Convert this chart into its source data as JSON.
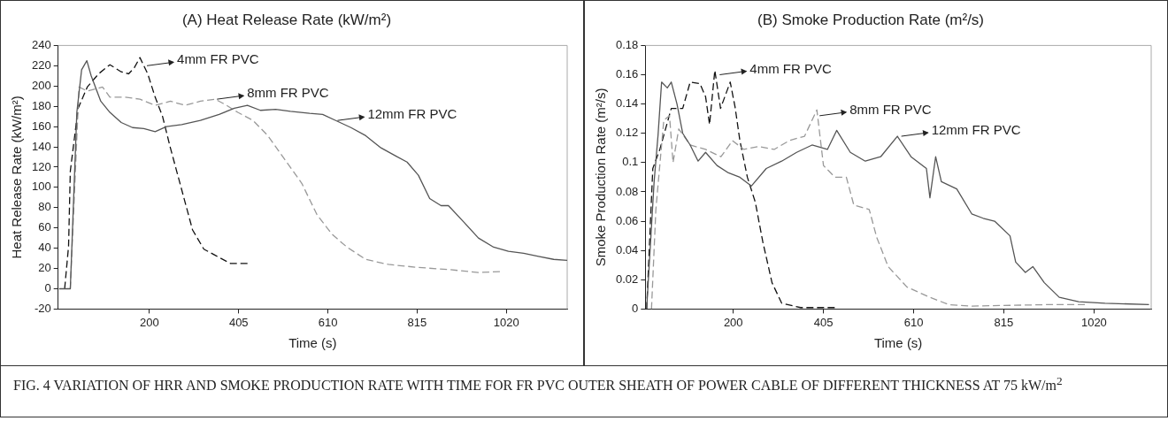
{
  "chart_data": [
    {
      "type": "line",
      "title": "(A) Heat Release Rate (kW/m²)",
      "xlabel": "Time (s)",
      "ylabel": "Heat Release Rate (kW/m²)",
      "xlim": [
        -10,
        1160
      ],
      "xticks": [
        200,
        405,
        610,
        815,
        1020
      ],
      "ylim": [
        -20,
        240
      ],
      "yticks": [
        -20,
        0,
        20,
        40,
        60,
        80,
        100,
        120,
        140,
        160,
        180,
        200,
        220,
        240
      ],
      "series": [
        {
          "color": "#555555",
          "line_style": "solid",
          "x": [
            -8,
            18,
            33,
            44,
            56,
            66,
            88,
            109,
            135,
            161,
            187,
            213,
            239,
            274,
            317,
            360,
            395,
            425,
            455,
            490,
            524,
            568,
            598,
            628,
            663,
            697,
            732,
            766,
            792,
            818,
            844,
            870,
            887,
            922,
            956,
            991,
            1025,
            1060,
            1094,
            1129,
            1160
          ],
          "values": [
            0,
            0,
            174,
            216,
            225,
            210,
            185,
            174,
            164,
            159,
            158,
            155,
            160,
            162,
            166,
            172,
            178,
            181,
            176,
            177,
            175,
            173,
            172,
            166,
            159,
            151,
            139,
            131,
            125,
            112,
            89,
            82,
            82,
            66,
            50,
            41,
            37,
            35,
            32,
            29,
            28
          ]
        },
        {
          "color": "#999999",
          "line_style": "dashed",
          "x": [
            18,
            38,
            57,
            92,
            109,
            144,
            178,
            213,
            248,
            282,
            317,
            351,
            377,
            403,
            438,
            472,
            515,
            550,
            585,
            619,
            654,
            697,
            749,
            818,
            887,
            956,
            1008
          ],
          "values": [
            0,
            199,
            195,
            199,
            189,
            189,
            187,
            181,
            185,
            181,
            185,
            187,
            181,
            174,
            166,
            151,
            125,
            104,
            73,
            54,
            41,
            29,
            24,
            21,
            19,
            16,
            17
          ]
        },
        {
          "color": "#111111",
          "line_style": "dashed",
          "x": [
            5,
            14,
            18,
            36,
            57,
            83,
            109,
            135,
            152,
            165,
            178,
            196,
            213,
            230,
            248,
            265,
            282,
            299,
            325,
            351,
            386,
            429
          ],
          "values": [
            0,
            42,
            116,
            178,
            199,
            212,
            221,
            214,
            212,
            218,
            228,
            212,
            189,
            170,
            139,
            112,
            85,
            58,
            39,
            33,
            25,
            25
          ]
        }
      ],
      "annotations": [
        {
          "text": "4mm FR PVC",
          "x": 190,
          "y": 220
        },
        {
          "text": "8mm FR PVC",
          "x": 351,
          "y": 187
        },
        {
          "text": "12mm FR PVC",
          "x": 628,
          "y": 166
        },
        "FIG. 4    VARIATION OF HRR AND SMOKE PRODUCTION RATE WITH TIME FOR FR PVC OUTER SHEATH OF POWER CABLE OF DIFFERENT THICKNESS AT 75 kW/m$^{2}$"
      ]
    },
    {
      "type": "line",
      "title": "(B) Smoke Production Rate (m²/s)",
      "xlabel": "Time (s)",
      "ylabel": "Smoke Production Rate (m²/s)",
      "xlim": [
        0,
        1150
      ],
      "xticks": [
        200,
        405,
        610,
        815,
        1020
      ],
      "ylim": [
        0,
        0.18
      ],
      "yticks": [
        0,
        0.02,
        0.04,
        0.06,
        0.08,
        0.1,
        0.12,
        0.14,
        0.16,
        0.18
      ],
      "series": [
        {
          "color": "#555555",
          "line_style": "solid",
          "x": [
            3,
            20,
            29,
            37,
            50,
            59,
            72,
            85,
            102,
            120,
            137,
            163,
            189,
            215,
            241,
            275,
            310,
            344,
            379,
            414,
            435,
            466,
            500,
            535,
            573,
            604,
            639,
            647,
            660,
            673,
            708,
            742,
            768,
            794,
            829,
            842,
            864,
            881,
            907,
            941,
            985,
            1045,
            1145
          ],
          "values": [
            0,
            0.087,
            0.119,
            0.155,
            0.151,
            0.155,
            0.14,
            0.12,
            0.112,
            0.101,
            0.107,
            0.098,
            0.093,
            0.09,
            0.084,
            0.096,
            0.101,
            0.107,
            0.112,
            0.109,
            0.122,
            0.107,
            0.101,
            0.104,
            0.118,
            0.104,
            0.096,
            0.076,
            0.104,
            0.087,
            0.082,
            0.065,
            0.062,
            0.06,
            0.05,
            0.032,
            0.025,
            0.029,
            0.018,
            0.008,
            0.005,
            0.004,
            0.003
          ]
        },
        {
          "color": "#999999",
          "line_style": "dashed",
          "x": [
            14,
            24,
            42,
            55,
            63,
            76,
            102,
            137,
            172,
            198,
            224,
            258,
            293,
            327,
            362,
            390,
            405,
            431,
            457,
            474,
            509,
            526,
            552,
            595,
            647,
            690,
            742,
            915,
            1002
          ],
          "values": [
            0,
            0.068,
            0.129,
            0.132,
            0.1,
            0.123,
            0.112,
            0.109,
            0.104,
            0.115,
            0.109,
            0.111,
            0.109,
            0.115,
            0.118,
            0.136,
            0.098,
            0.09,
            0.09,
            0.071,
            0.068,
            0.049,
            0.029,
            0.015,
            0.008,
            0.003,
            0.002,
            0.003,
            0.003
          ]
        },
        {
          "color": "#111111",
          "line_style": "dashed",
          "x": [
            3,
            17,
            33,
            59,
            85,
            102,
            124,
            137,
            146,
            158,
            171,
            193,
            204,
            215,
            232,
            250,
            267,
            288,
            310,
            353,
            431
          ],
          "values": [
            0,
            0.096,
            0.109,
            0.137,
            0.137,
            0.155,
            0.154,
            0.145,
            0.126,
            0.163,
            0.137,
            0.155,
            0.138,
            0.115,
            0.09,
            0.073,
            0.046,
            0.018,
            0.004,
            0.001,
            0.001
          ]
        }
      ],
      "annotations": [
        {
          "text": "4mm FR PVC",
          "x": 165,
          "y": 0.16
        },
        {
          "text": "8mm FR PVC",
          "x": 392,
          "y": 0.132
        },
        {
          "text": "12mm FR PVC",
          "x": 578,
          "y": 0.118
        }
      ]
    }
  ]
}
